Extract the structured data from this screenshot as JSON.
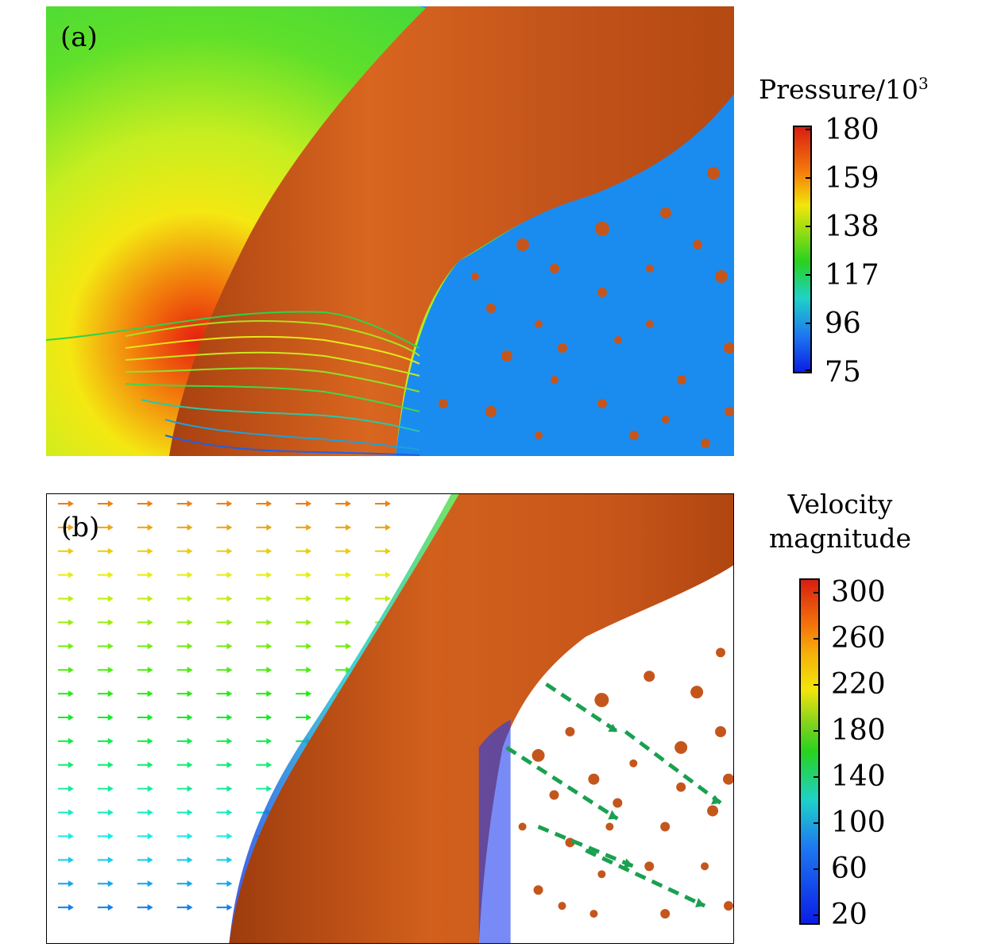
{
  "panel_a": {
    "label": "(a)",
    "colorbar": {
      "title_main": "Pressure/10",
      "title_sup": "3",
      "ticks": [
        "180",
        "159",
        "138",
        "117",
        "96",
        "75"
      ]
    }
  },
  "panel_b": {
    "label": "(b)",
    "colorbar": {
      "title_line1": "Velocity",
      "title_line2": "magnitude",
      "ticks": [
        "300",
        "260",
        "220",
        "180",
        "140",
        "100",
        "60",
        "20"
      ]
    }
  },
  "colors": {
    "jet_top": "#d81e12",
    "jet_bottom": "#0a1ee6",
    "jet_orange": "#f57a0a",
    "jet_yellow": "#f2e60a",
    "jet_green": "#28d21e",
    "jet_cyan": "#1ed2c8",
    "jet_blue": "#1e78f0",
    "liquid_surface": "#c4561c",
    "gas_background_blue": "#1a8cf0",
    "guide_arrows": "#1aa050"
  }
}
